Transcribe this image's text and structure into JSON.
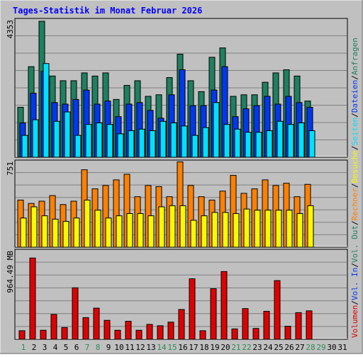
{
  "title": "Tages-Statistik im Monat Februar 2026",
  "colors": {
    "background": "#C0C0C0",
    "title": "#0000FF",
    "anfragen": "#1E8060",
    "dateien": "#0038F0",
    "seiten": "#00E0FF",
    "besuche": "#F8F800",
    "rechner": "#FF8000",
    "volumen": "#E00000",
    "weekend_label": "#2E8B57",
    "weekday_label": "#000000"
  },
  "legend_right": {
    "top": [
      "Anfragen",
      "/",
      "Dateien",
      "/",
      "Seiten",
      "/",
      "Besuche",
      "/",
      "Rechner",
      "/",
      "Vol. Out",
      "/",
      "Vol. In",
      "/",
      "Volumen"
    ]
  },
  "chart_data": [
    {
      "type": "bar",
      "panel": "requests",
      "y_max_label": "4353",
      "ylim": [
        0,
        4353
      ],
      "categories": [
        "1",
        "2",
        "3",
        "4",
        "5",
        "6",
        "7",
        "8",
        "9",
        "10",
        "11",
        "12",
        "13",
        "14",
        "15",
        "16",
        "17",
        "18",
        "19",
        "20",
        "21",
        "22",
        "23",
        "24",
        "25",
        "26",
        "27",
        "28"
      ],
      "series": [
        {
          "name": "Anfragen",
          "color_key": "anfragen",
          "values": [
            1600,
            2900,
            4353,
            2600,
            2450,
            2450,
            2700,
            2600,
            2700,
            1850,
            2300,
            2450,
            1950,
            2000,
            2550,
            3300,
            2450,
            2100,
            3200,
            3500,
            1950,
            2000,
            2000,
            2400,
            2700,
            2800,
            2600,
            1800
          ]
        },
        {
          "name": "Dateien",
          "color_key": "dateien",
          "values": [
            1100,
            2050,
            2750,
            1750,
            1700,
            1850,
            2150,
            1700,
            1800,
            1300,
            1700,
            1750,
            1500,
            1250,
            2000,
            2800,
            1650,
            1650,
            2150,
            2900,
            1300,
            1550,
            1650,
            1950,
            1700,
            1950,
            1750,
            1600
          ]
        },
        {
          "name": "Seiten",
          "color_key": "seiten",
          "values": [
            700,
            1200,
            3000,
            1150,
            1450,
            700,
            1050,
            1100,
            1050,
            750,
            850,
            900,
            850,
            1150,
            1100,
            1000,
            700,
            950,
            1750,
            1050,
            900,
            800,
            800,
            850,
            1150,
            1050,
            1100,
            850
          ]
        }
      ]
    },
    {
      "type": "bar",
      "panel": "visits",
      "y_max_label": "751",
      "ylim": [
        0,
        751
      ],
      "categories": [
        "1",
        "2",
        "3",
        "4",
        "5",
        "6",
        "7",
        "8",
        "9",
        "10",
        "11",
        "12",
        "13",
        "14",
        "15",
        "16",
        "17",
        "18",
        "19",
        "20",
        "21",
        "22",
        "23",
        "24",
        "25",
        "26",
        "27",
        "28"
      ],
      "series": [
        {
          "name": "Rechner",
          "color_key": "rechner",
          "values": [
            420,
            390,
            410,
            460,
            380,
            410,
            690,
            520,
            550,
            600,
            650,
            450,
            550,
            540,
            450,
            760,
            550,
            450,
            420,
            500,
            640,
            480,
            520,
            600,
            550,
            570,
            450,
            560
          ]
        },
        {
          "name": "Besuche",
          "color_key": "besuche",
          "values": [
            260,
            360,
            280,
            250,
            230,
            260,
            420,
            330,
            260,
            280,
            300,
            300,
            280,
            360,
            370,
            370,
            240,
            280,
            310,
            310,
            300,
            340,
            330,
            330,
            330,
            330,
            300,
            370
          ]
        }
      ]
    },
    {
      "type": "bar",
      "panel": "volume",
      "y_max_label": "964.49 MB",
      "ylim": [
        0,
        964.49
      ],
      "categories": [
        "1",
        "2",
        "3",
        "4",
        "5",
        "6",
        "7",
        "8",
        "9",
        "10",
        "11",
        "12",
        "13",
        "14",
        "15",
        "16",
        "17",
        "18",
        "19",
        "20",
        "21",
        "22",
        "23",
        "24",
        "25",
        "26",
        "27",
        "28"
      ],
      "series": [
        {
          "name": "Volumen",
          "color_key": "volumen",
          "values": [
            95,
            900,
            100,
            275,
            130,
            570,
            240,
            345,
            210,
            100,
            200,
            100,
            165,
            150,
            190,
            330,
            670,
            95,
            560,
            750,
            115,
            340,
            120,
            310,
            650,
            145,
            295,
            315
          ]
        }
      ]
    }
  ],
  "x_labels": [
    {
      "label": "1",
      "weekend": true
    },
    {
      "label": "2",
      "weekend": false
    },
    {
      "label": "3",
      "weekend": false
    },
    {
      "label": "4",
      "weekend": false
    },
    {
      "label": "5",
      "weekend": false
    },
    {
      "label": "6",
      "weekend": false
    },
    {
      "label": "7",
      "weekend": true
    },
    {
      "label": "8",
      "weekend": true
    },
    {
      "label": "9",
      "weekend": false
    },
    {
      "label": "10",
      "weekend": false
    },
    {
      "label": "11",
      "weekend": false
    },
    {
      "label": "12",
      "weekend": false
    },
    {
      "label": "13",
      "weekend": false
    },
    {
      "label": "14",
      "weekend": true
    },
    {
      "label": "15",
      "weekend": true
    },
    {
      "label": "16",
      "weekend": false
    },
    {
      "label": "17",
      "weekend": false
    },
    {
      "label": "18",
      "weekend": false
    },
    {
      "label": "19",
      "weekend": false
    },
    {
      "label": "20",
      "weekend": false
    },
    {
      "label": "21",
      "weekend": true
    },
    {
      "label": "22",
      "weekend": true
    },
    {
      "label": "23",
      "weekend": false
    },
    {
      "label": "24",
      "weekend": false
    },
    {
      "label": "25",
      "weekend": false
    },
    {
      "label": "26",
      "weekend": false
    },
    {
      "label": "27",
      "weekend": false
    },
    {
      "label": "28",
      "weekend": true
    },
    {
      "label": "29",
      "weekend": true
    },
    {
      "label": "30",
      "weekend": false
    },
    {
      "label": "31",
      "weekend": false
    }
  ]
}
